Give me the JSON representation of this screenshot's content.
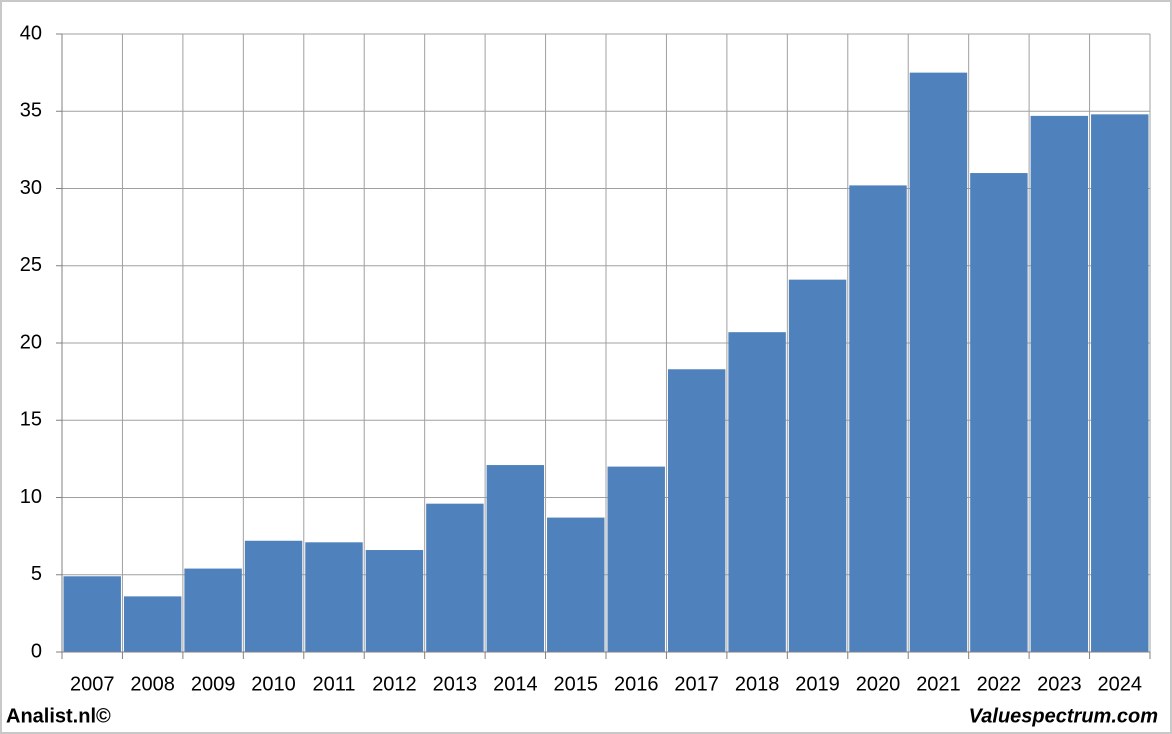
{
  "chart_data": {
    "type": "bar",
    "categories": [
      "2007",
      "2008",
      "2009",
      "2010",
      "2011",
      "2012",
      "2013",
      "2014",
      "2015",
      "2016",
      "2017",
      "2018",
      "2019",
      "2020",
      "2021",
      "2022",
      "2023",
      "2024"
    ],
    "values": [
      4.9,
      3.6,
      5.4,
      7.2,
      7.1,
      6.6,
      9.6,
      12.1,
      8.7,
      12.0,
      18.3,
      20.7,
      24.1,
      30.2,
      37.5,
      31.0,
      34.7,
      34.8
    ],
    "color": "#4f81bd",
    "ylim": [
      0,
      40
    ],
    "yticks": [
      0,
      5,
      10,
      15,
      20,
      25,
      30,
      35,
      40
    ],
    "grid": true
  },
  "footer": {
    "left": "Analist.nl©",
    "right": "Valuespectrum.com"
  }
}
